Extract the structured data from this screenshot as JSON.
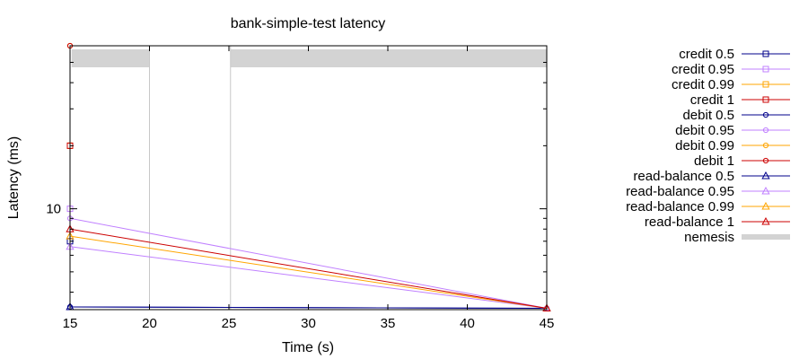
{
  "chart_data": {
    "type": "line",
    "title": "bank-simple-test latency",
    "xlabel": "Time (s)",
    "ylabel": "Latency (ms)",
    "x_scale": "linear",
    "y_scale": "log",
    "xlim": [
      15,
      45
    ],
    "ylim": [
      3.3,
      60
    ],
    "x_ticks": [
      15,
      20,
      25,
      30,
      35,
      40,
      45
    ],
    "x_tick_labels": [
      "15",
      "20",
      "25",
      "30",
      "35",
      "40",
      "45"
    ],
    "y_ticks": [
      10
    ],
    "y_tick_labels": [
      "10"
    ],
    "y_minor_ticks": [
      4,
      5,
      6,
      7,
      8,
      9,
      20,
      30,
      40,
      50
    ],
    "grid": false,
    "legend_position": "right",
    "nemesis": {
      "name": "nemesis",
      "color": "#d3d3d3",
      "intervals": [
        [
          15.1,
          20
        ],
        [
          25.1,
          45
        ]
      ],
      "markers_x": [
        20,
        25.1
      ]
    },
    "series": [
      {
        "name": "credit 0.5",
        "color": "#00008b",
        "marker": "square",
        "x": [
          15
        ],
        "y": [
          7.0
        ]
      },
      {
        "name": "credit 0.95",
        "color": "#c080ff",
        "marker": "square",
        "x": [
          15
        ],
        "y": [
          10.0
        ]
      },
      {
        "name": "credit 0.99",
        "color": "#ffa500",
        "marker": "square",
        "x": [
          15
        ],
        "y": [
          20.0
        ]
      },
      {
        "name": "credit 1",
        "color": "#cc0000",
        "marker": "square",
        "x": [
          15
        ],
        "y": [
          20.0
        ]
      },
      {
        "name": "debit 0.5",
        "color": "#00008b",
        "marker": "circle",
        "x": [
          15,
          45
        ],
        "y": [
          3.4,
          3.35
        ]
      },
      {
        "name": "debit 0.95",
        "color": "#c080ff",
        "marker": "circle",
        "x": [
          15,
          45
        ],
        "y": [
          9.0,
          3.35
        ]
      },
      {
        "name": "debit 0.99",
        "color": "#ffa500",
        "marker": "circle",
        "x": [
          15
        ],
        "y": [
          60.0
        ]
      },
      {
        "name": "debit 1",
        "color": "#cc0000",
        "marker": "circle",
        "x": [
          15
        ],
        "y": [
          60.0
        ]
      },
      {
        "name": "read-balance 0.5",
        "color": "#00008b",
        "marker": "triangle",
        "x": [
          15,
          45
        ],
        "y": [
          3.4,
          3.35
        ]
      },
      {
        "name": "read-balance 0.95",
        "color": "#c080ff",
        "marker": "triangle",
        "x": [
          15,
          45
        ],
        "y": [
          6.6,
          3.35
        ]
      },
      {
        "name": "read-balance 0.99",
        "color": "#ffa500",
        "marker": "triangle",
        "x": [
          15,
          45
        ],
        "y": [
          7.4,
          3.35
        ]
      },
      {
        "name": "read-balance 1",
        "color": "#cc0000",
        "marker": "triangle",
        "x": [
          15,
          45
        ],
        "y": [
          8.0,
          3.35
        ]
      }
    ]
  }
}
